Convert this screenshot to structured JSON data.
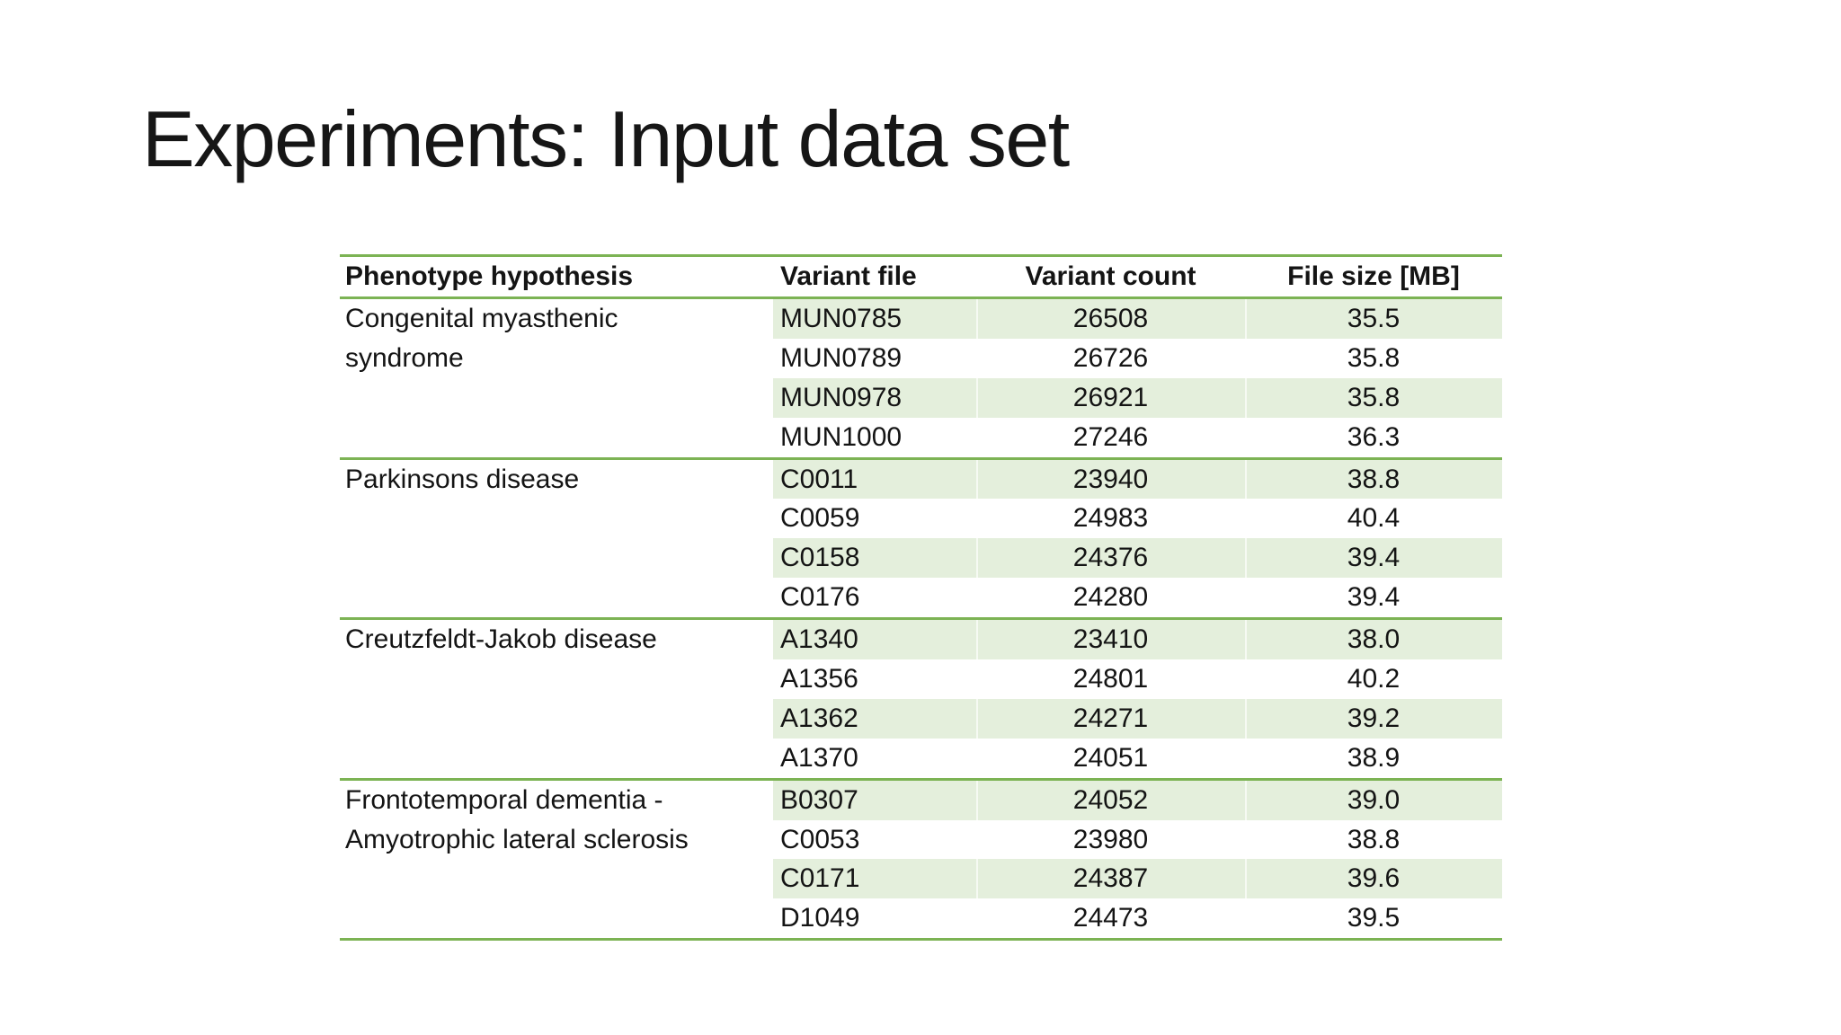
{
  "slide": {
    "title": "Experiments: Input data set"
  },
  "colors": {
    "accent_green_line": "#7cb354",
    "row_fill_green": "#e4efdc",
    "text": "#161616",
    "background": "#ffffff"
  },
  "table": {
    "columns": [
      "Phenotype hypothesis",
      "Variant file",
      "Variant count",
      "File size [MB]"
    ],
    "groups": [
      {
        "phenotype": "Congenital myasthenic syndrome",
        "rows": [
          {
            "file": "MUN0785",
            "count": "26508",
            "size": "35.5"
          },
          {
            "file": "MUN0789",
            "count": "26726",
            "size": "35.8"
          },
          {
            "file": "MUN0978",
            "count": "26921",
            "size": "35.8"
          },
          {
            "file": "MUN1000",
            "count": "27246",
            "size": "36.3"
          }
        ]
      },
      {
        "phenotype": "Parkinsons disease",
        "rows": [
          {
            "file": "C0011",
            "count": "23940",
            "size": "38.8"
          },
          {
            "file": "C0059",
            "count": "24983",
            "size": "40.4"
          },
          {
            "file": "C0158",
            "count": "24376",
            "size": "39.4"
          },
          {
            "file": "C0176",
            "count": "24280",
            "size": "39.4"
          }
        ]
      },
      {
        "phenotype": "Creutzfeldt-Jakob disease",
        "rows": [
          {
            "file": "A1340",
            "count": "23410",
            "size": "38.0"
          },
          {
            "file": "A1356",
            "count": "24801",
            "size": "40.2"
          },
          {
            "file": "A1362",
            "count": "24271",
            "size": "39.2"
          },
          {
            "file": "A1370",
            "count": "24051",
            "size": "38.9"
          }
        ]
      },
      {
        "phenotype": "Frontotemporal dementia - Amyotrophic lateral sclerosis",
        "rows": [
          {
            "file": "B0307",
            "count": "24052",
            "size": "39.0"
          },
          {
            "file": "C0053",
            "count": "23980",
            "size": "38.8"
          },
          {
            "file": "C0171",
            "count": "24387",
            "size": "39.6"
          },
          {
            "file": "D1049",
            "count": "24473",
            "size": "39.5"
          }
        ]
      }
    ]
  }
}
